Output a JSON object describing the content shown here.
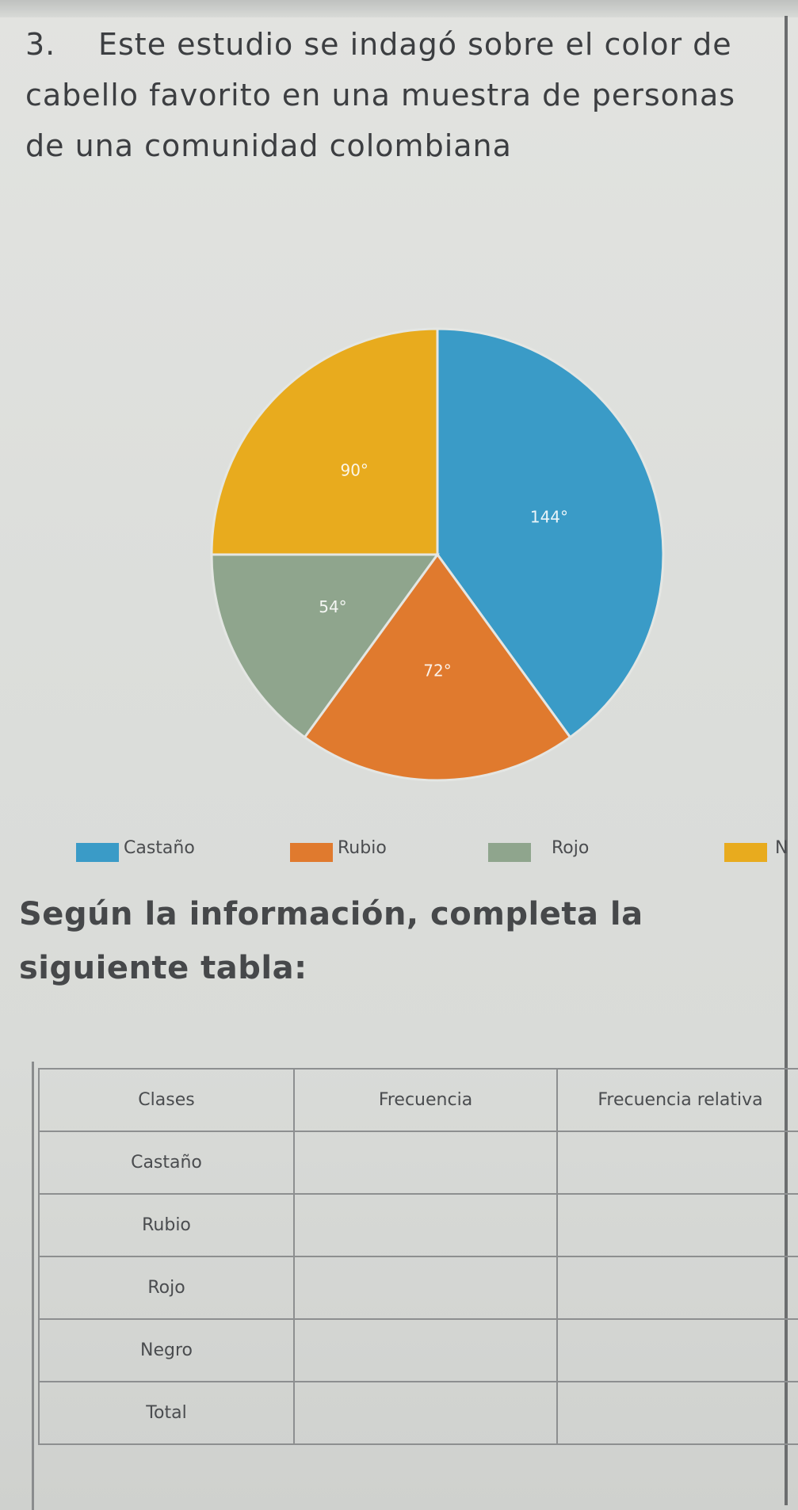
{
  "question": {
    "number": "3.",
    "text": "Este estudio se indagó sobre el color de cabello favorito en una muestra de personas de una comunidad colombiana"
  },
  "chart_data": {
    "type": "pie",
    "unit": "degrees",
    "slices": [
      {
        "name": "Castaño",
        "value": 144,
        "label": "144°",
        "color": "#3a9bc7"
      },
      {
        "name": "Rubio",
        "value": 72,
        "label": "72°",
        "color": "#e07a2e"
      },
      {
        "name": "Rojo",
        "value": 54,
        "label": "54°",
        "color": "#8fa58d"
      },
      {
        "name": "Negro",
        "value": 90,
        "label": "90°",
        "color": "#e8ab1e"
      }
    ],
    "legend": [
      "Castaño",
      "Rubio",
      "Rojo",
      "N"
    ],
    "legend_placement": "bottom"
  },
  "instruction": "Según la información, completa la siguiente tabla:",
  "table": {
    "headers": [
      "Clases",
      "Frecuencia",
      "Frecuencia relativa"
    ],
    "rows": [
      "Castaño",
      "Rubio",
      "Rojo",
      "Negro",
      "Total"
    ]
  }
}
